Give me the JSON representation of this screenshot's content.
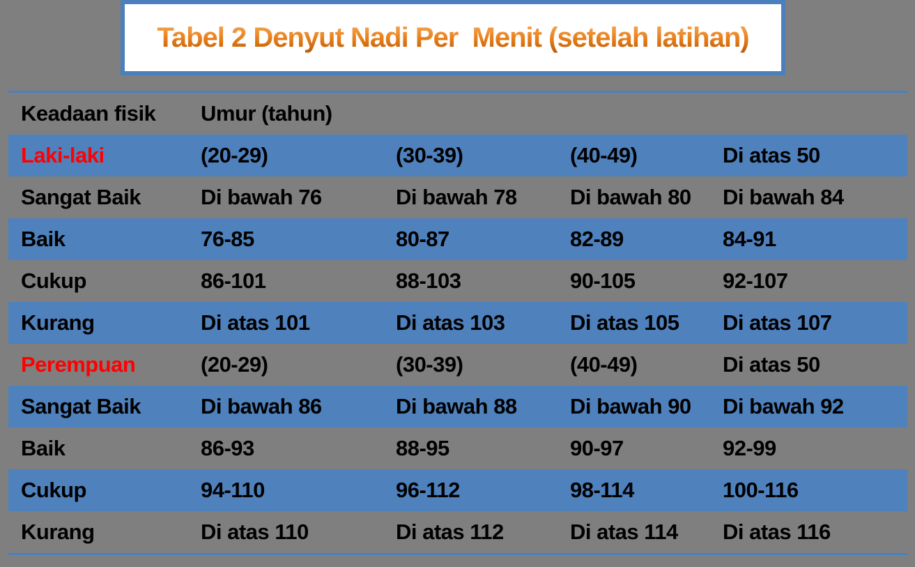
{
  "title": "Tabel 2 Denyut Nadi Per  Menit (setelah latihan)",
  "colors": {
    "page_background": "#7F7F7F",
    "row_blue": "#4F81BD",
    "rule_blue": "#4C7FBE",
    "title_orange": "#E0761B",
    "group_label_red": "#FF0000",
    "title_box_background": "#FFFFFF",
    "text_black": "#000000"
  },
  "table": {
    "header": [
      "Keadaan fisik",
      "Umur (tahun)"
    ],
    "rows": [
      {
        "shade": "blue",
        "first_cell_red": true,
        "cells": [
          "Laki-laki",
          "(20-29)",
          "(30-39)",
          "(40-49)",
          "Di atas 50"
        ]
      },
      {
        "shade": "gray",
        "first_cell_red": false,
        "cells": [
          "Sangat Baik",
          "Di bawah 76",
          "Di bawah 78",
          "Di bawah 80",
          "Di bawah 84"
        ]
      },
      {
        "shade": "blue",
        "first_cell_red": false,
        "cells": [
          "Baik",
          "76-85",
          "80-87",
          "82-89",
          "84-91"
        ]
      },
      {
        "shade": "gray",
        "first_cell_red": false,
        "cells": [
          "Cukup",
          "86-101",
          "88-103",
          "90-105",
          "92-107"
        ]
      },
      {
        "shade": "blue",
        "first_cell_red": false,
        "cells": [
          "Kurang",
          "Di atas 101",
          "Di atas 103",
          "Di atas 105",
          "Di atas 107"
        ]
      },
      {
        "shade": "gray",
        "first_cell_red": true,
        "cells": [
          "Perempuan",
          "(20-29)",
          "(30-39)",
          "(40-49)",
          "Di atas 50"
        ]
      },
      {
        "shade": "blue",
        "first_cell_red": false,
        "cells": [
          "Sangat Baik",
          "Di bawah 86",
          "Di bawah 88",
          "Di bawah 90",
          "Di bawah 92"
        ]
      },
      {
        "shade": "gray",
        "first_cell_red": false,
        "cells": [
          "Baik",
          "86-93",
          "88-95",
          "90-97",
          "92-99"
        ]
      },
      {
        "shade": "blue",
        "first_cell_red": false,
        "cells": [
          "Cukup",
          "94-110",
          "96-112",
          "98-114",
          "100-116"
        ]
      },
      {
        "shade": "gray",
        "first_cell_red": false,
        "cells": [
          "Kurang",
          "Di atas 110",
          "Di atas 112",
          "Di atas 114",
          "Di atas 116"
        ]
      }
    ]
  }
}
